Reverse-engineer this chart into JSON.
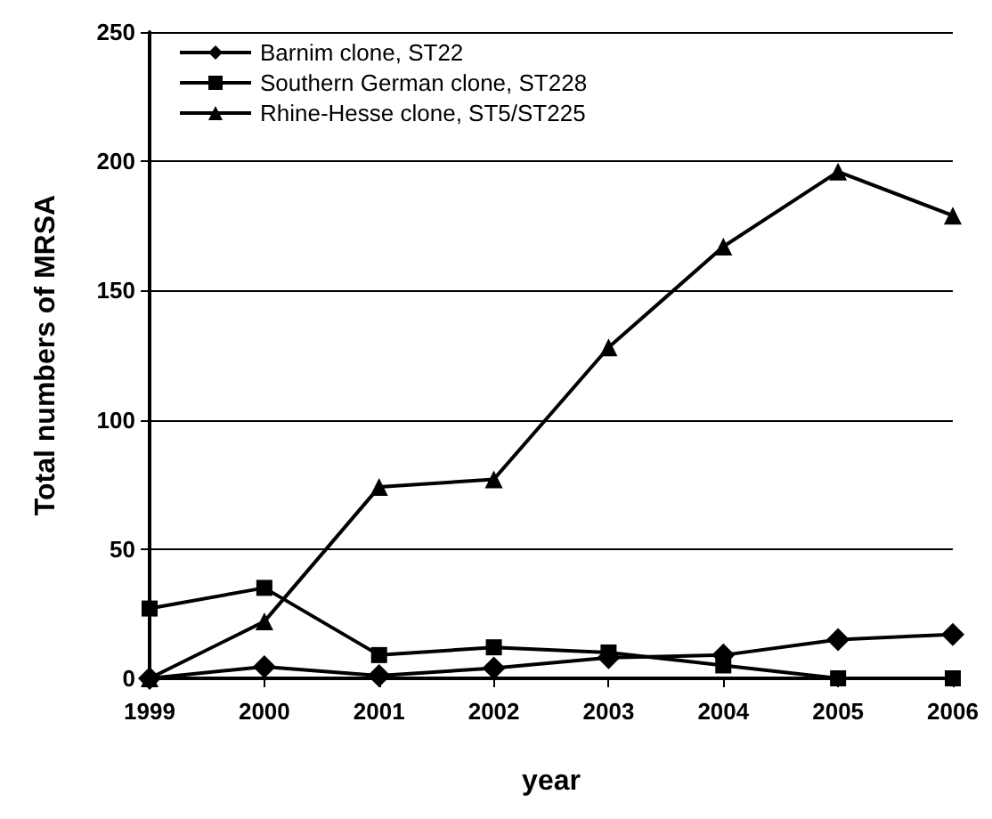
{
  "chart_data": {
    "type": "line",
    "xlabel": "year",
    "ylabel": "Total numbers of MRSA",
    "categories": [
      "1999",
      "2000",
      "2001",
      "2002",
      "2003",
      "2004",
      "2005",
      "2006"
    ],
    "series": [
      {
        "name": "Barnim clone, ST22",
        "color": "#000000",
        "marker": "diamond",
        "values": [
          0,
          4.5,
          1,
          4,
          8,
          9,
          15,
          17
        ]
      },
      {
        "name": "Southern German clone, ST228",
        "color": "#000000",
        "marker": "square",
        "values": [
          27,
          35,
          9,
          12,
          10,
          5,
          0,
          0
        ]
      },
      {
        "name": "Rhine-Hesse clone, ST5/ST225",
        "color": "#000000",
        "marker": "triangle",
        "values": [
          0,
          22,
          74,
          77,
          128,
          167,
          196,
          179
        ]
      }
    ],
    "ylim": [
      0,
      250
    ],
    "yticks": [
      0,
      50,
      100,
      150,
      200,
      250
    ],
    "grid": "y",
    "legend": "top left"
  }
}
